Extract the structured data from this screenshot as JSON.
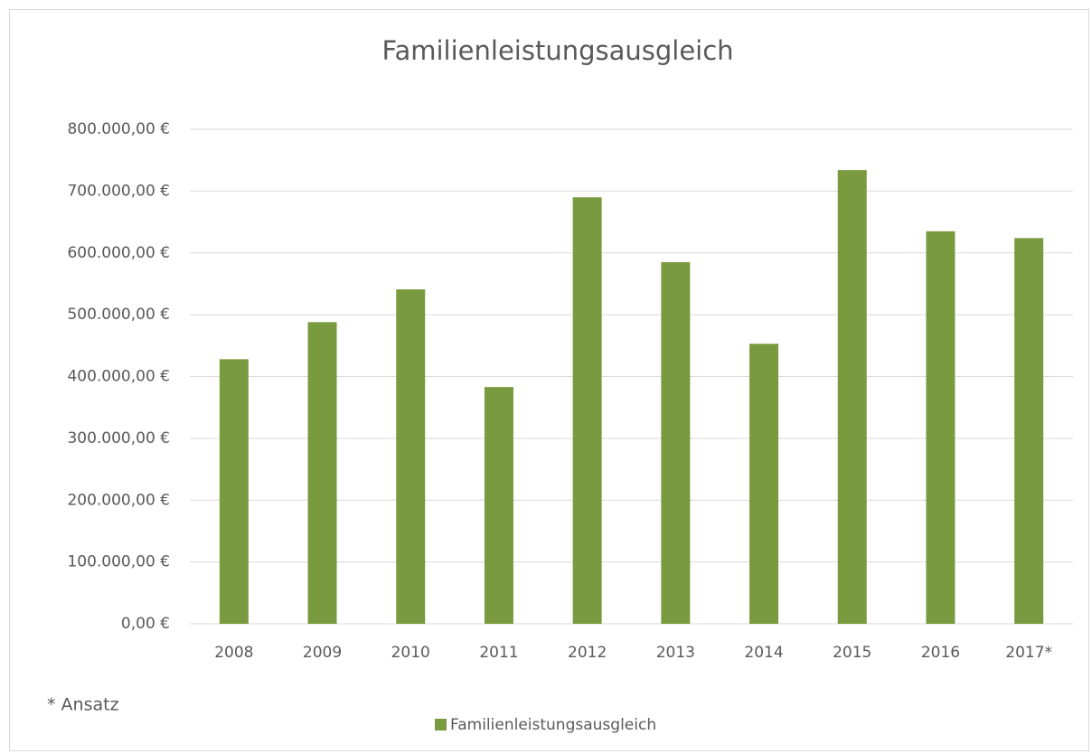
{
  "chart_data": {
    "type": "bar",
    "title": "Familienleistungsausgleich",
    "categories": [
      "2008",
      "2009",
      "2010",
      "2011",
      "2012",
      "2013",
      "2014",
      "2015",
      "2016",
      "2017*"
    ],
    "series": [
      {
        "name": "Familienleistungsausgleich",
        "color": "#7a9a40",
        "values": [
          428000,
          488000,
          541000,
          383000,
          690000,
          585000,
          453000,
          734000,
          635000,
          624000
        ]
      }
    ],
    "ylim": [
      0,
      800000
    ],
    "yticks": [
      {
        "value": 0,
        "label": "0,00 €"
      },
      {
        "value": 100000,
        "label": "100.000,00 €"
      },
      {
        "value": 200000,
        "label": "200.000,00 €"
      },
      {
        "value": 300000,
        "label": "300.000,00 €"
      },
      {
        "value": 400000,
        "label": "400.000,00 €"
      },
      {
        "value": 500000,
        "label": "500.000,00 €"
      },
      {
        "value": 600000,
        "label": "600.000,00 €"
      },
      {
        "value": 700000,
        "label": "700.000,00 €"
      },
      {
        "value": 800000,
        "label": "800.000,00 €"
      }
    ],
    "grid": true,
    "legend": "bottom",
    "annotation": "* Ansatz"
  }
}
